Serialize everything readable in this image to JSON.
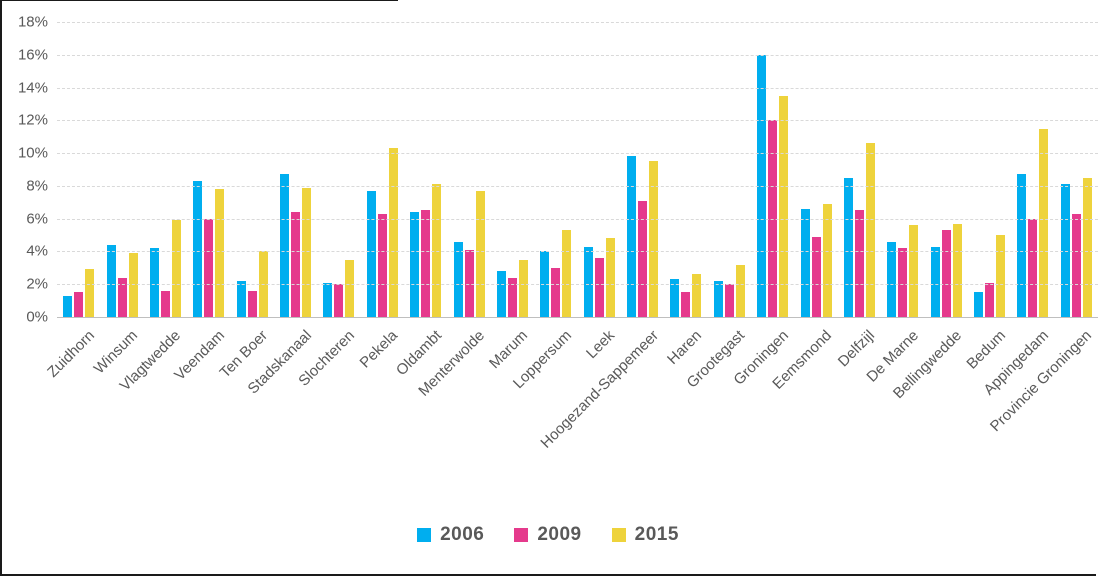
{
  "chart_data": {
    "type": "bar",
    "title": "",
    "xlabel": "",
    "ylabel": "",
    "ylim": [
      0,
      18
    ],
    "y_tick_step": 2,
    "y_tick_suffix": "%",
    "y_ticks": [
      "18%",
      "16%",
      "14%",
      "12%",
      "10%",
      "8%",
      "6%",
      "4%",
      "2%",
      "0%"
    ],
    "grid": "horizontal-dashed",
    "legend_position": "bottom-center",
    "categories": [
      "Zuidhorn",
      "Winsum",
      "Vlagtwedde",
      "Veendam",
      "Ten Boer",
      "Stadskanaal",
      "Slochteren",
      "Pekela",
      "Oldambt",
      "Menterwolde",
      "Marum",
      "Loppersum",
      "Leek",
      "Hoogezand-Sappemeer",
      "Haren",
      "Grootegast",
      "Groningen",
      "Eemsmond",
      "Delfzijl",
      "De Marne",
      "Bellingwedde",
      "Bedum",
      "Appingedam",
      "Provincie Groningen"
    ],
    "series": [
      {
        "name": "2006",
        "color": "#00AEEF",
        "values": [
          1.3,
          4.4,
          4.2,
          8.3,
          2.2,
          8.7,
          2.1,
          7.7,
          6.4,
          4.6,
          2.8,
          4.0,
          4.3,
          9.8,
          2.3,
          2.2,
          16.0,
          6.6,
          8.5,
          4.6,
          4.3,
          1.5,
          8.7,
          8.1
        ]
      },
      {
        "name": "2009",
        "color": "#E53A8C",
        "values": [
          1.5,
          2.4,
          1.6,
          6.0,
          1.6,
          6.4,
          2.0,
          6.3,
          6.5,
          4.1,
          2.4,
          3.0,
          3.6,
          7.1,
          1.5,
          2.0,
          12.0,
          4.9,
          6.5,
          4.2,
          5.3,
          2.1,
          6.0,
          6.3
        ]
      },
      {
        "name": "2015",
        "color": "#EED33C",
        "values": [
          2.9,
          3.9,
          5.9,
          7.8,
          4.0,
          7.9,
          3.5,
          10.3,
          8.1,
          7.7,
          3.5,
          5.3,
          4.8,
          9.5,
          2.6,
          3.2,
          13.5,
          6.9,
          10.6,
          5.6,
          5.7,
          5.0,
          11.5,
          8.5
        ]
      }
    ],
    "colors": {
      "gridline": "#d9d9d9",
      "axis_line": "#bfbfbf",
      "tick_text": "#595959",
      "legend_text": "#595959"
    }
  }
}
